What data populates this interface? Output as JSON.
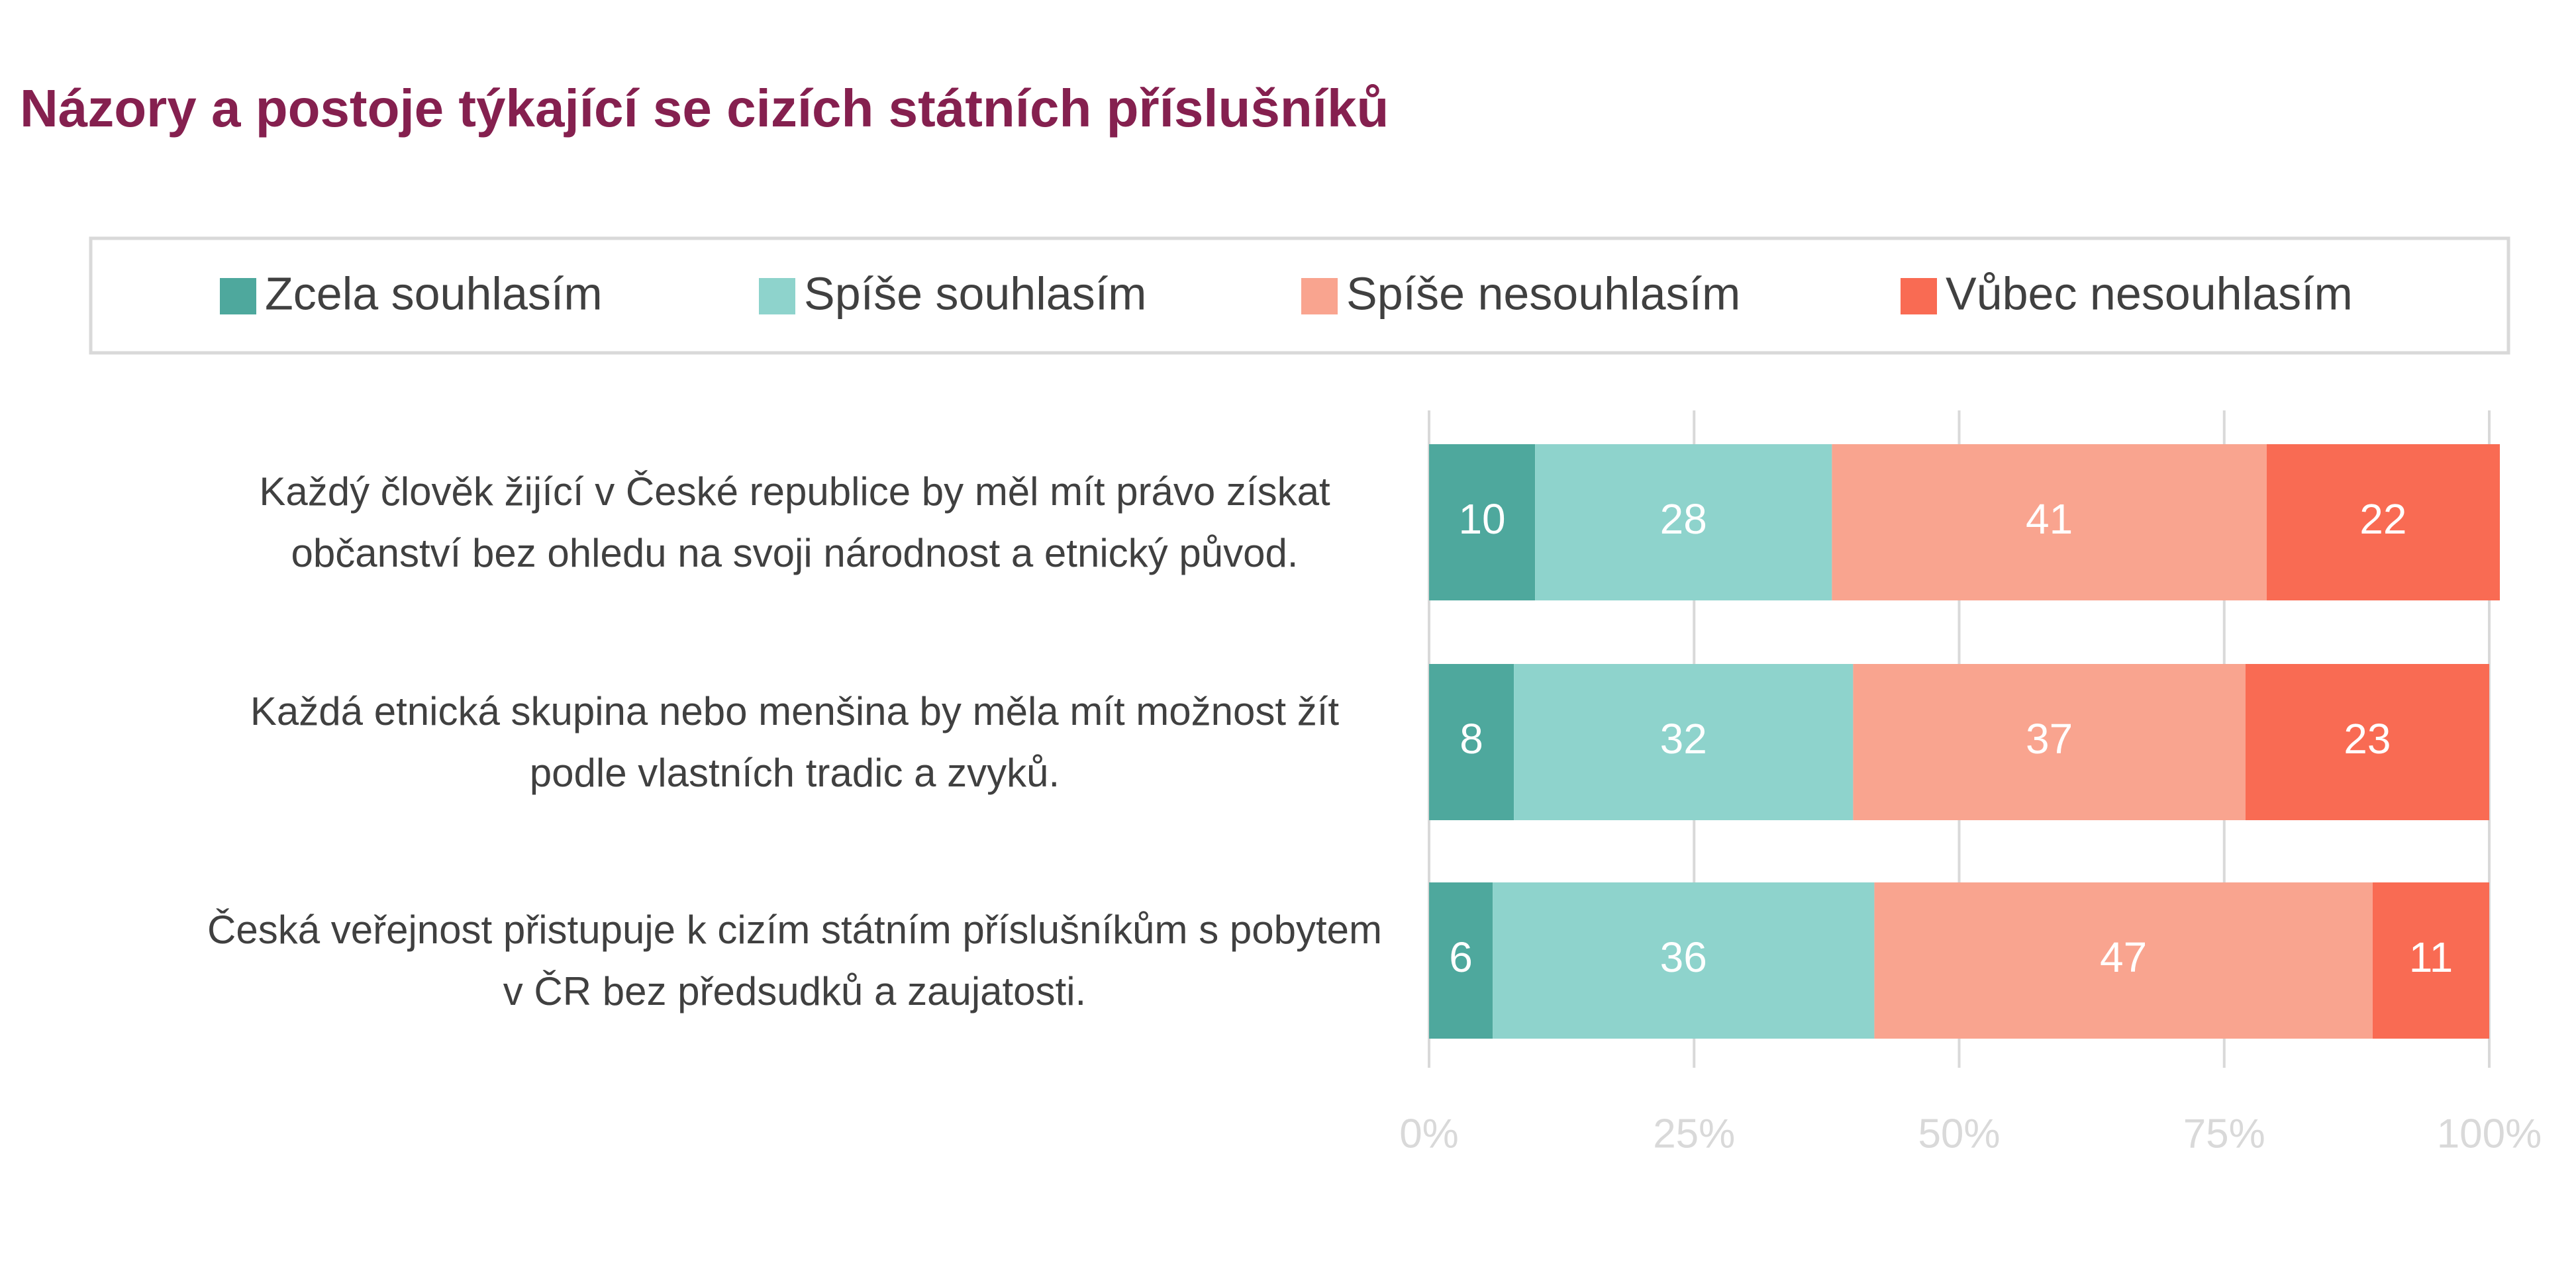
{
  "chart_data": {
    "type": "bar",
    "title": "Názory a postoje týkající se cizích státních příslušníků",
    "categories": [
      "Každý člověk žijící v České republice by měl mít právo získat občanství bez ohledu na svoji národnost a etnický původ.",
      "Každá etnická skupina nebo menšina by měla mít možnost žít podle vlastních tradic a zvyků.",
      "Česká veřejnost přistupuje k cizím státním příslušníkům s pobytem v ČR bez předsudků a zaujatosti."
    ],
    "series": [
      {
        "name": "Zcela souhlasím",
        "color": "#4ea89d",
        "values": [
          10,
          8,
          6
        ]
      },
      {
        "name": "Spíše souhlasím",
        "color": "#8ed3cc",
        "values": [
          28,
          32,
          36
        ]
      },
      {
        "name": "Spíše nesouhlasím",
        "color": "#f9a48f",
        "values": [
          41,
          37,
          47
        ]
      },
      {
        "name": "Vůbec nesouhlasím",
        "color": "#f96b53",
        "values": [
          22,
          23,
          11
        ]
      }
    ],
    "xlim": [
      0,
      100
    ],
    "xticks": [
      {
        "value": 0,
        "label": "0%"
      },
      {
        "value": 25,
        "label": "25%"
      },
      {
        "value": 50,
        "label": "50%"
      },
      {
        "value": 75,
        "label": "75%"
      },
      {
        "value": 100,
        "label": "100%"
      }
    ],
    "grid": true
  }
}
